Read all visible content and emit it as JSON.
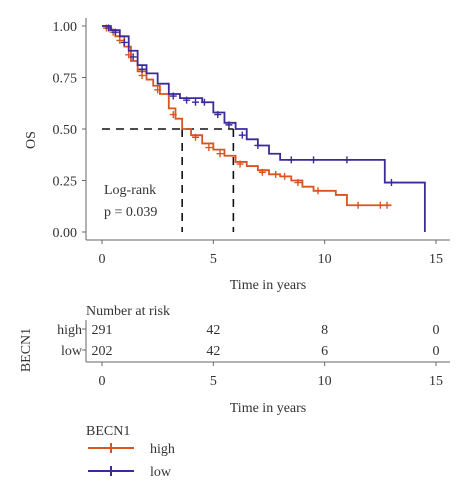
{
  "chart_data": {
    "type": "line",
    "subtype": "kaplan-meier",
    "title": "",
    "ylabel": "OS",
    "xlabel": "Time in years",
    "xlim": [
      0,
      15
    ],
    "ylim": [
      0,
      1
    ],
    "x_ticks": [
      "0",
      "5",
      "10",
      "15"
    ],
    "y_ticks": [
      "0.00",
      "0.25",
      "0.50",
      "0.75",
      "1.00"
    ],
    "grid": false,
    "median_line_y": 0.5,
    "annotation": [
      "Log-rank",
      "p = 0.039"
    ],
    "series": [
      {
        "name": "high",
        "color": "#d9541e",
        "median": 3.6,
        "points": [
          [
            0,
            1.0
          ],
          [
            0.3,
            0.98
          ],
          [
            0.6,
            0.95
          ],
          [
            1.0,
            0.9
          ],
          [
            1.3,
            0.83
          ],
          [
            1.6,
            0.78
          ],
          [
            2.0,
            0.74
          ],
          [
            2.3,
            0.71
          ],
          [
            2.6,
            0.67
          ],
          [
            3.0,
            0.6
          ],
          [
            3.3,
            0.55
          ],
          [
            3.6,
            0.5
          ],
          [
            4.0,
            0.47
          ],
          [
            4.5,
            0.43
          ],
          [
            5.0,
            0.4
          ],
          [
            5.5,
            0.37
          ],
          [
            6.0,
            0.34
          ],
          [
            6.5,
            0.32
          ],
          [
            7.0,
            0.3
          ],
          [
            7.5,
            0.28
          ],
          [
            8.0,
            0.27
          ],
          [
            8.5,
            0.25
          ],
          [
            9.0,
            0.22
          ],
          [
            9.5,
            0.2
          ],
          [
            10.0,
            0.2
          ],
          [
            10.5,
            0.18
          ],
          [
            11.0,
            0.13
          ],
          [
            12.0,
            0.13
          ],
          [
            13.0,
            0.13
          ]
        ],
        "censored": [
          [
            0.2,
            0.99
          ],
          [
            0.5,
            0.97
          ],
          [
            0.8,
            0.93
          ],
          [
            1.2,
            0.86
          ],
          [
            1.8,
            0.76
          ],
          [
            2.5,
            0.69
          ],
          [
            3.2,
            0.57
          ],
          [
            4.2,
            0.46
          ],
          [
            4.8,
            0.41
          ],
          [
            5.3,
            0.38
          ],
          [
            6.2,
            0.33
          ],
          [
            7.2,
            0.29
          ],
          [
            7.8,
            0.28
          ],
          [
            8.2,
            0.27
          ],
          [
            8.8,
            0.24
          ],
          [
            9.7,
            0.2
          ],
          [
            11.5,
            0.13
          ],
          [
            12.5,
            0.13
          ],
          [
            12.8,
            0.13
          ]
        ]
      },
      {
        "name": "low",
        "color": "#3b2a97",
        "median": 5.9,
        "points": [
          [
            0,
            1.0
          ],
          [
            0.4,
            0.98
          ],
          [
            0.8,
            0.95
          ],
          [
            1.2,
            0.88
          ],
          [
            1.6,
            0.81
          ],
          [
            2.0,
            0.77
          ],
          [
            2.5,
            0.72
          ],
          [
            3.0,
            0.67
          ],
          [
            3.5,
            0.65
          ],
          [
            4.5,
            0.63
          ],
          [
            5.0,
            0.58
          ],
          [
            5.5,
            0.53
          ],
          [
            6.0,
            0.5
          ],
          [
            6.5,
            0.45
          ],
          [
            7.0,
            0.42
          ],
          [
            7.5,
            0.38
          ],
          [
            8.0,
            0.35
          ],
          [
            9.0,
            0.35
          ],
          [
            10.0,
            0.35
          ],
          [
            11.0,
            0.35
          ],
          [
            12.0,
            0.35
          ],
          [
            12.6,
            0.35
          ],
          [
            12.7,
            0.24
          ],
          [
            14.5,
            0.24
          ],
          [
            14.5,
            0.0
          ]
        ],
        "censored": [
          [
            0.3,
            0.99
          ],
          [
            0.6,
            0.97
          ],
          [
            1.0,
            0.92
          ],
          [
            1.4,
            0.85
          ],
          [
            1.8,
            0.79
          ],
          [
            3.2,
            0.66
          ],
          [
            3.8,
            0.64
          ],
          [
            4.2,
            0.63
          ],
          [
            4.6,
            0.63
          ],
          [
            5.2,
            0.57
          ],
          [
            5.7,
            0.52
          ],
          [
            6.3,
            0.47
          ],
          [
            7.0,
            0.42
          ],
          [
            8.5,
            0.35
          ],
          [
            9.5,
            0.35
          ],
          [
            11.0,
            0.35
          ],
          [
            13.0,
            0.24
          ]
        ]
      }
    ]
  },
  "risk_table": {
    "title": "Number at risk",
    "ylabel": "BECN1",
    "xlabel": "Time in years",
    "x_ticks": [
      "0",
      "5",
      "10",
      "15"
    ],
    "x_positions": [
      0,
      5,
      10,
      15
    ],
    "rows": [
      {
        "name": "high",
        "color": "#d9541e",
        "values": [
          "291",
          "42",
          "8",
          "0"
        ]
      },
      {
        "name": "low",
        "color": "#3b2a97",
        "values": [
          "202",
          "42",
          "6",
          "0"
        ]
      }
    ]
  },
  "legend": {
    "title": "BECN1",
    "items": [
      {
        "name": "high",
        "color": "#d9541e"
      },
      {
        "name": "low",
        "color": "#3b2a97"
      }
    ]
  }
}
